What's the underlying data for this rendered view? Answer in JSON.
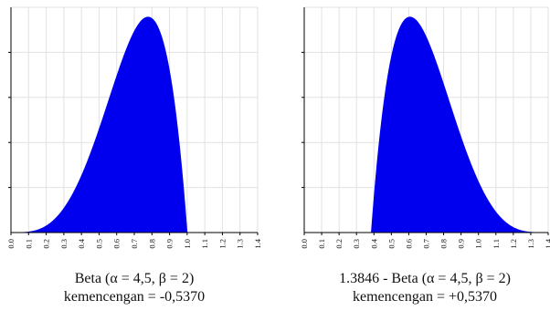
{
  "chart_data": [
    {
      "type": "area",
      "distribution": {
        "name": "Beta",
        "alpha": 4.5,
        "beta": 2,
        "shift": 0,
        "reflect": false
      },
      "x_ticks": [
        "0.0",
        "0.1",
        "0.2",
        "0.3",
        "0.4",
        "0.5",
        "0.6",
        "0.7",
        "0.8",
        "0.9",
        "1.0",
        "1.1",
        "1.2",
        "1.3",
        "1.4"
      ],
      "xlim": [
        0.0,
        1.4
      ],
      "y_gridlines": 5,
      "grid": true,
      "fill_color": "#0000ee",
      "caption_line1": "Beta (α = 4,5, β = 2)",
      "caption_line2": "kemencengan = -0,5370"
    },
    {
      "type": "area",
      "distribution": {
        "name": "Beta",
        "alpha": 4.5,
        "beta": 2,
        "shift": 1.3846,
        "reflect": true
      },
      "x_ticks": [
        "0.0",
        "0.1",
        "0.2",
        "0.3",
        "0.4",
        "0.5",
        "0.6",
        "0.7",
        "0.8",
        "0.9",
        "1.0",
        "1.1",
        "1.2",
        "1.3",
        "1.4"
      ],
      "xlim": [
        0.0,
        1.4
      ],
      "y_gridlines": 5,
      "grid": true,
      "fill_color": "#0000ee",
      "caption_line1": "1.3846 - Beta (α = 4,5, β = 2)",
      "caption_line2": "kemencengan = +0,5370"
    }
  ]
}
